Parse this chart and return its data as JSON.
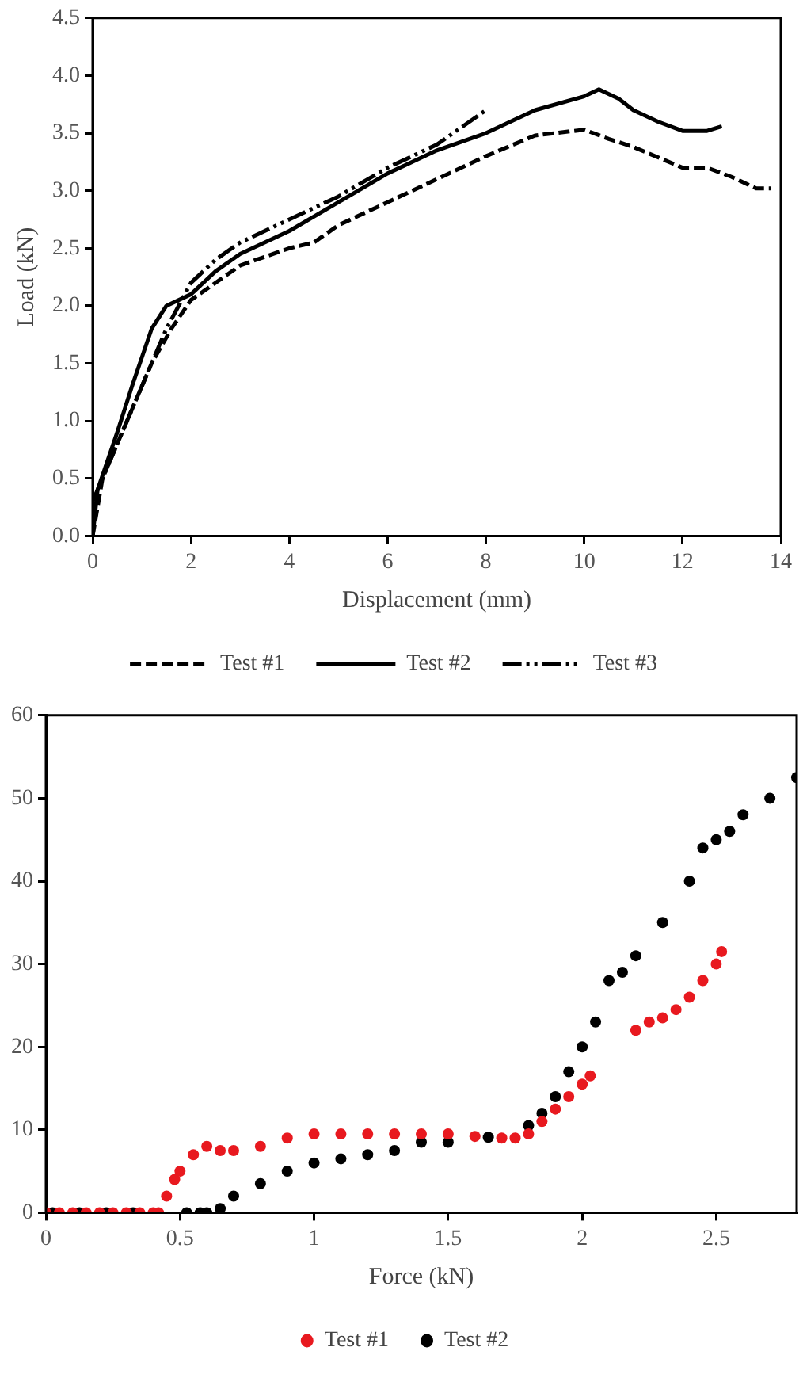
{
  "chart_data": [
    {
      "type": "line",
      "xlabel": "Displacement (mm)",
      "ylabel": "Load (kN)",
      "xlim": [
        0,
        14
      ],
      "xticks": [
        0,
        2,
        4,
        6,
        8,
        10,
        12,
        14
      ],
      "ylim": [
        0,
        4.5
      ],
      "yticks": [
        {
          "value": 0,
          "label": "0.0"
        },
        {
          "value": 0.5,
          "label": "0.5"
        },
        {
          "value": 1,
          "label": "1.0"
        },
        {
          "value": 1.5,
          "label": "1.5"
        },
        {
          "value": 2,
          "label": "2.0"
        },
        {
          "value": 2.5,
          "label": "2.5"
        },
        {
          "value": 3,
          "label": "3.0"
        },
        {
          "value": 3.5,
          "label": "3.5"
        },
        {
          "value": 4,
          "label": "4.0"
        },
        {
          "value": 4.5,
          "label": "4.5"
        }
      ],
      "grid": false,
      "legend": "bottom",
      "marker": "none",
      "series": [
        {
          "name": "Test #1",
          "color": "#000000",
          "line_style": "dashed",
          "x": [
            0,
            0.2,
            0.5,
            0.8,
            1.2,
            1.6,
            2,
            3,
            4,
            4.5,
            5,
            6,
            7,
            8,
            9,
            10,
            10.5,
            11,
            12,
            12.5,
            13,
            13.5,
            13.8
          ],
          "values": [
            0,
            0.5,
            0.8,
            1.1,
            1.5,
            1.8,
            2.05,
            2.35,
            2.5,
            2.55,
            2.7,
            2.9,
            3.1,
            3.3,
            3.48,
            3.53,
            3.45,
            3.38,
            3.2,
            3.2,
            3.12,
            3.02,
            3.02
          ]
        },
        {
          "name": "Test #2",
          "color": "#000000",
          "line_style": "solid",
          "x": [
            0,
            0.1,
            0.5,
            0.8,
            1.2,
            1.5,
            2,
            2.5,
            3,
            4,
            5,
            6,
            7,
            8,
            8.5,
            9,
            10,
            10.3,
            10.7,
            11,
            11.5,
            12,
            12.5,
            12.8
          ],
          "values": [
            0,
            0.4,
            0.9,
            1.3,
            1.8,
            2,
            2.1,
            2.3,
            2.45,
            2.65,
            2.9,
            3.15,
            3.35,
            3.5,
            3.6,
            3.7,
            3.82,
            3.88,
            3.8,
            3.7,
            3.6,
            3.52,
            3.52,
            3.56
          ]
        },
        {
          "name": "Test #3",
          "color": "#000000",
          "line_style": "dotted",
          "x": [
            0,
            0.5,
            1,
            1.5,
            2,
            2.5,
            3,
            4,
            5,
            6,
            7,
            8
          ],
          "values": [
            0.3,
            0.8,
            1.3,
            1.8,
            2.2,
            2.4,
            2.55,
            2.75,
            2.95,
            3.2,
            3.4,
            3.7
          ]
        }
      ]
    },
    {
      "type": "scatter",
      "xlabel": "Force (kN)",
      "xlim": [
        0,
        2.8
      ],
      "xticks": [
        0,
        0.5,
        1,
        1.5,
        2,
        2.5
      ],
      "ylim": [
        0,
        60
      ],
      "yticks": [
        0,
        10,
        20,
        30,
        40,
        50,
        60
      ],
      "grid": false,
      "legend": "bottom",
      "marker": "circle",
      "series": [
        {
          "name": "Test #1",
          "color": "#e8191f",
          "x": [
            0,
            0.05,
            0.1,
            0.15,
            0.2,
            0.25,
            0.3,
            0.35,
            0.4,
            0.42,
            0.45,
            0.48,
            0.5,
            0.55,
            0.6,
            0.65,
            0.7,
            0.8,
            0.9,
            1,
            1.1,
            1.2,
            1.3,
            1.4,
            1.5,
            1.6,
            1.7,
            1.75,
            1.8,
            1.85,
            1.9,
            1.95,
            2,
            2.03,
            2.2,
            2.25,
            2.3,
            2.35,
            2.4,
            2.45,
            2.5,
            2.52
          ],
          "values": [
            0,
            0,
            0,
            0,
            0,
            0,
            0,
            0,
            0,
            0,
            2,
            4,
            5,
            7,
            8,
            7.5,
            7.5,
            8,
            9,
            9.5,
            9.5,
            9.5,
            9.5,
            9.5,
            9.5,
            9.2,
            9,
            9,
            9.5,
            11,
            12.5,
            14,
            15.5,
            16.5,
            22,
            23,
            23.5,
            24.5,
            26,
            28,
            30,
            31.5
          ]
        },
        {
          "name": "Test #2",
          "color": "#000000",
          "x": [
            0.025,
            0.125,
            0.225,
            0.325,
            0.525,
            0.575,
            0.6,
            0.65,
            0.7,
            0.8,
            0.9,
            1,
            1.1,
            1.2,
            1.3,
            1.4,
            1.5,
            1.65,
            1.8,
            1.85,
            1.9,
            1.95,
            2,
            2.05,
            2.1,
            2.15,
            2.2,
            2.3,
            2.4,
            2.45,
            2.5,
            2.55,
            2.6,
            2.7,
            2.8
          ],
          "values": [
            0,
            0,
            0,
            0,
            0,
            0,
            0,
            0.5,
            2,
            3.5,
            5,
            6,
            6.5,
            7,
            7.5,
            8.5,
            8.5,
            9.1,
            10.5,
            12,
            14,
            17,
            20,
            23,
            28,
            29,
            31,
            35,
            40,
            44,
            45,
            46,
            48,
            50,
            52.5
          ]
        }
      ]
    }
  ]
}
